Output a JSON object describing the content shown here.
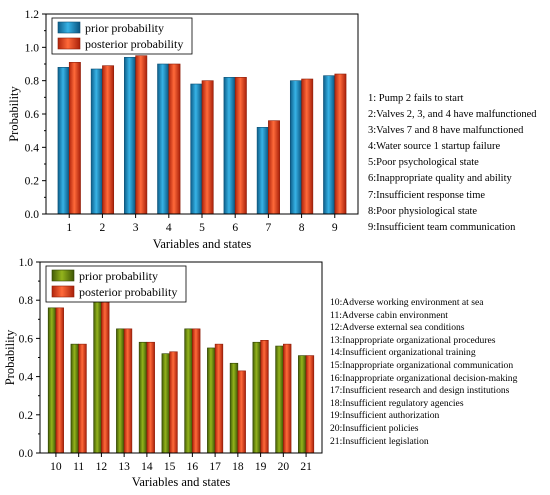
{
  "chart_data": [
    {
      "type": "bar",
      "categories": [
        "1",
        "2",
        "3",
        "4",
        "5",
        "6",
        "7",
        "8",
        "9"
      ],
      "series": [
        {
          "name": "prior probability",
          "values": [
            0.88,
            0.87,
            0.94,
            0.9,
            0.78,
            0.82,
            0.52,
            0.8,
            0.83
          ],
          "color": "#1f8fc4"
        },
        {
          "name": "posterior probability",
          "values": [
            0.91,
            0.89,
            0.95,
            0.9,
            0.8,
            0.82,
            0.56,
            0.81,
            0.84
          ],
          "color": "#e8442a"
        }
      ],
      "xlabel": "Variables and states",
      "ylabel": "Probability",
      "ylim": [
        0,
        1.2
      ],
      "yticks": [
        "0.0",
        "0.2",
        "0.4",
        "0.6",
        "0.8",
        "1.0",
        "1.2"
      ],
      "legend_position": "top-left",
      "grid": false,
      "annotations": [
        "1: Pump 2 fails to start",
        "2:Valves 2, 3, and 4 have malfunctioned",
        "3:Valves 7 and 8 have malfunctioned",
        "4:Water source 1 startup failure",
        "5:Poor psychological state",
        "6:Inappropriate quality and ability",
        "7:Insufficient response time",
        "8:Poor physiological state",
        "9:Insufficient team communication"
      ]
    },
    {
      "type": "bar",
      "categories": [
        "10",
        "11",
        "12",
        "13",
        "14",
        "15",
        "16",
        "17",
        "18",
        "19",
        "20",
        "21"
      ],
      "series": [
        {
          "name": "prior probability",
          "values": [
            0.76,
            0.57,
            0.8,
            0.65,
            0.58,
            0.52,
            0.65,
            0.55,
            0.47,
            0.58,
            0.56,
            0.51
          ],
          "color": "#6b8e0c"
        },
        {
          "name": "posterior probability",
          "values": [
            0.76,
            0.57,
            0.8,
            0.65,
            0.58,
            0.53,
            0.65,
            0.57,
            0.43,
            0.59,
            0.57,
            0.51
          ],
          "color": "#e8442a"
        }
      ],
      "xlabel": "Variables and states",
      "ylabel": "Probability",
      "ylim": [
        0,
        1.0
      ],
      "yticks": [
        "0.0",
        "0.2",
        "0.4",
        "0.6",
        "0.8",
        "1.0"
      ],
      "legend_position": "top-left",
      "grid": false,
      "annotations": [
        "10:Adverse working environment at sea",
        "11:Adverse cabin environment",
        "12:Adverse external sea conditions",
        "13:Inappropriate organizational procedures",
        "14:Insufficient organizational training",
        "15:Inappropriate organizational communication",
        "16:Inappropriate organizational decision-making",
        "17:Insufficient research and design institutions",
        "18:Insufficient regulatory agencies",
        "19:Insufficient authorization",
        "20:Insufficient policies",
        "21:Insufficient legislation"
      ]
    }
  ]
}
